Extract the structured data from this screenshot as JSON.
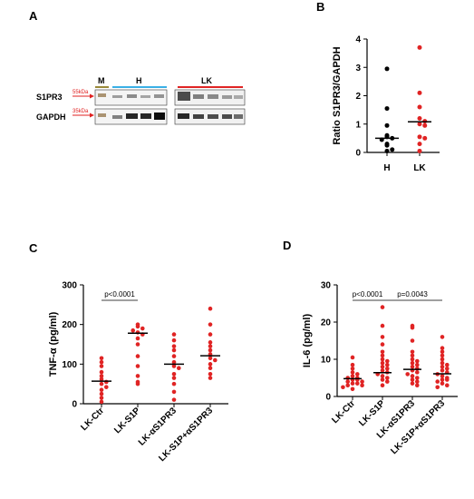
{
  "panels": {
    "A": {
      "letter": "A",
      "blot": {
        "lanes": {
          "marker": "M",
          "group1": "H",
          "group2": "LK"
        },
        "rows": [
          {
            "protein": "S1PR3",
            "size": "55kDa"
          },
          {
            "protein": "GAPDH",
            "size": "35kDa"
          }
        ],
        "colors": {
          "group1_bar": "#3ab0e6",
          "group2_bar": "#e02424",
          "marker_bar": "#9a8a3a",
          "arrow": "#e02020"
        }
      }
    },
    "B": {
      "letter": "B"
    },
    "C": {
      "letter": "C"
    },
    "D": {
      "letter": "D"
    }
  },
  "chart_data": [
    {
      "id": "B",
      "type": "scatter",
      "ylabel": "Ratio S1PR3/GAPDH",
      "xlabel": "",
      "categories": [
        "H",
        "LK"
      ],
      "ylim": [
        0,
        4
      ],
      "yticks": [
        0,
        1,
        2,
        3,
        4
      ],
      "colors": [
        "#000000",
        "#e02424"
      ],
      "series": [
        {
          "category": "H",
          "values": [
            2.95,
            1.55,
            0.95,
            0.6,
            0.55,
            0.5,
            0.45,
            0.3,
            0.25,
            0.1,
            0.05
          ],
          "mean": 0.5
        },
        {
          "category": "LK",
          "values": [
            3.7,
            2.1,
            1.6,
            1.2,
            1.1,
            1.0,
            0.95,
            0.55,
            0.5,
            0.3,
            0.05
          ],
          "mean": 1.08
        }
      ],
      "comparisons": []
    },
    {
      "id": "C",
      "type": "scatter",
      "ylabel": "TNF-α (pg/ml)",
      "xlabel": "",
      "categories": [
        "LK-Ctr",
        "LK-S1P",
        "LK-αS1PR3",
        "LK-S1P+αS1PR3"
      ],
      "ylim": [
        0,
        300
      ],
      "yticks": [
        0,
        100,
        200,
        300
      ],
      "colors": [
        "#e02424"
      ],
      "series": [
        {
          "category": "LK-Ctr",
          "values": [
            115,
            105,
            95,
            80,
            70,
            62,
            55,
            50,
            42,
            35,
            25,
            15,
            5
          ],
          "mean": 57
        },
        {
          "category": "LK-S1P",
          "values": [
            200,
            195,
            190,
            185,
            180,
            175,
            165,
            150,
            120,
            95,
            70,
            55,
            50
          ],
          "mean": 178
        },
        {
          "category": "LK-αS1PR3",
          "values": [
            175,
            160,
            145,
            135,
            120,
            105,
            95,
            90,
            75,
            65,
            50,
            30,
            10
          ],
          "mean": 100
        },
        {
          "category": "LK-S1P+αS1PR3",
          "values": [
            240,
            200,
            175,
            155,
            145,
            135,
            125,
            115,
            110,
            100,
            90,
            75,
            65
          ],
          "mean": 121
        }
      ],
      "comparisons": [
        {
          "from": "LK-Ctr",
          "to": "LK-S1P",
          "label": "p<0.0001"
        }
      ]
    },
    {
      "id": "D",
      "type": "scatter",
      "ylabel": "IL-6 (pg/ml)",
      "xlabel": "",
      "categories": [
        "LK-Ctr",
        "LK-S1P",
        "LK-αS1PR3",
        "LK-S1P+αS1PR3"
      ],
      "ylim": [
        0,
        30
      ],
      "yticks": [
        0,
        10,
        20,
        30
      ],
      "colors": [
        "#e02424"
      ],
      "series": [
        {
          "category": "LK-Ctr",
          "values": [
            10.5,
            8.5,
            7.5,
            6.5,
            6,
            5.5,
            5,
            5,
            4.5,
            4.5,
            4,
            4,
            3.5,
            3.5,
            3,
            3,
            2.5,
            2
          ],
          "mean": 4.8
        },
        {
          "category": "LK-S1P",
          "values": [
            24,
            19,
            16,
            14,
            12,
            11,
            10,
            9.5,
            9,
            8.5,
            8,
            7.5,
            7,
            6.5,
            6,
            5.5,
            5,
            4.5,
            4,
            3
          ],
          "mean": 6.4
        },
        {
          "category": "LK-αS1PR3",
          "values": [
            19,
            18.5,
            15,
            12,
            11,
            10,
            9.5,
            9,
            8.5,
            8,
            7.5,
            7,
            6.5,
            6,
            5.5,
            5,
            4.5,
            4,
            3.5,
            3
          ],
          "mean": 7.3
        },
        {
          "category": "LK-S1P+αS1PR3",
          "values": [
            16,
            13,
            12,
            11,
            10,
            9,
            8.5,
            8,
            7.5,
            7,
            6.5,
            6,
            5.5,
            5,
            4.5,
            4.5,
            4,
            3.5,
            3,
            2.5
          ],
          "mean": 6.1
        }
      ],
      "comparisons": [
        {
          "from": "LK-Ctr",
          "to": "LK-S1P",
          "label": "p<0.0001"
        },
        {
          "from": "LK-S1P",
          "to": "LK-S1P+αS1PR3",
          "label": "p=0.0043"
        }
      ]
    }
  ]
}
